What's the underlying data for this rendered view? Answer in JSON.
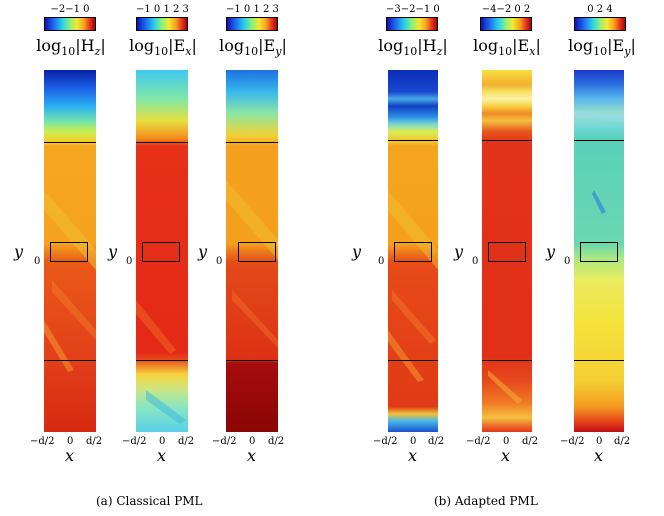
{
  "figure": {
    "left_panel": {
      "caption": "(a)  Classical PML",
      "plots": [
        {
          "ticks": "−2−1  0",
          "label_main": "log",
          "label_base": "10",
          "label_field": "|H",
          "label_comp": "z",
          "label_end": "|"
        },
        {
          "ticks": "−1  0  1  2  3",
          "label_main": "log",
          "label_base": "10",
          "label_field": "|E",
          "label_comp": "x",
          "label_end": "|"
        },
        {
          "ticks": "−1 0 1 2 3",
          "label_main": "log",
          "label_base": "10",
          "label_field": "|E",
          "label_comp": "y",
          "label_end": "|"
        }
      ]
    },
    "right_panel": {
      "caption": "(b)  Adapted PML",
      "plots": [
        {
          "ticks": "−3−2−1  0",
          "label_main": "log",
          "label_base": "10",
          "label_field": "|H",
          "label_comp": "z",
          "label_end": "|"
        },
        {
          "ticks": "−4−2  0  2",
          "label_main": "log",
          "label_base": "10",
          "label_field": "|E",
          "label_comp": "x",
          "label_end": "|"
        },
        {
          "ticks": "0   2   4",
          "label_main": "log",
          "label_base": "10",
          "label_field": "|E",
          "label_comp": "y",
          "label_end": "|"
        }
      ]
    },
    "axes": {
      "y_label": "y",
      "y_zero": "0",
      "x_label": "x",
      "x_ticks": {
        "left": "−d/2",
        "mid": "0",
        "right": "d/2"
      }
    }
  }
}
